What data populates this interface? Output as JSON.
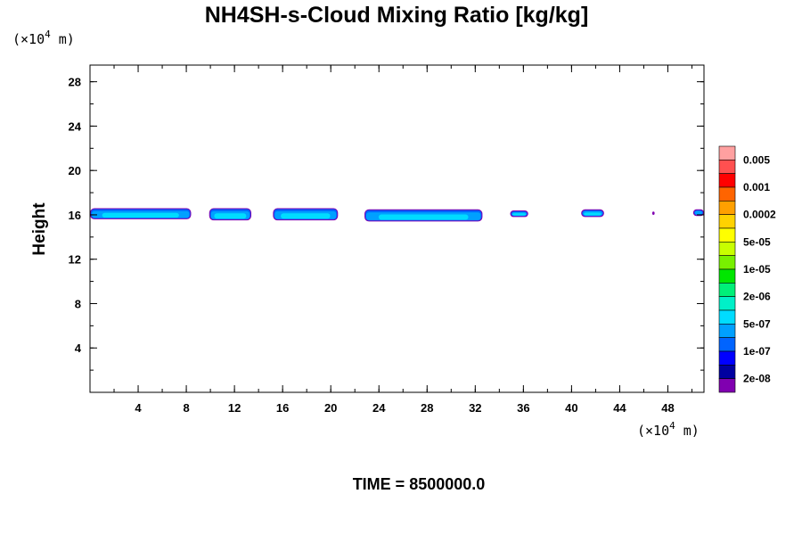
{
  "chart_data": {
    "type": "contour",
    "title": "NH4SH-s-Cloud Mixing Ratio [kg/kg]",
    "ylabel": "Height",
    "y_unit": "(×10",
    "x_unit": "(×10",
    "unit_exp": "4",
    "unit_tail": " m)",
    "time_label": "TIME = 8500000.0",
    "xlim": [
      0,
      51
    ],
    "ylim": [
      0,
      29.5
    ],
    "x_ticks": [
      4,
      8,
      12,
      16,
      20,
      24,
      28,
      32,
      36,
      40,
      44,
      48
    ],
    "y_ticks": [
      4,
      8,
      12,
      16,
      20,
      24,
      28
    ],
    "x_minor_step": 2,
    "y_minor_step": 2,
    "colorbar": {
      "levels": [
        "0.005",
        "0.001",
        "0.0002",
        "5e-05",
        "1e-05",
        "2e-06",
        "5e-07",
        "1e-07",
        "2e-08"
      ],
      "colors": [
        "#ffa0a0",
        "#ff5050",
        "#ff0000",
        "#ff6400",
        "#ffa000",
        "#ffd200",
        "#ffff00",
        "#c8ff00",
        "#78f000",
        "#00e600",
        "#00f078",
        "#00f0c8",
        "#00dcff",
        "#00a0ff",
        "#0064ff",
        "#0000ff",
        "#0000a0",
        "#8000b0"
      ]
    },
    "cloud_regions": [
      {
        "x": [
          0.0,
          8.4
        ],
        "y": [
          15.6,
          16.6
        ]
      },
      {
        "x": [
          9.9,
          13.4
        ],
        "y": [
          15.5,
          16.6
        ]
      },
      {
        "x": [
          15.2,
          20.6
        ],
        "y": [
          15.5,
          16.6
        ]
      },
      {
        "x": [
          22.8,
          32.6
        ],
        "y": [
          15.4,
          16.5
        ]
      },
      {
        "x": [
          34.9,
          36.4
        ],
        "y": [
          15.8,
          16.4
        ]
      },
      {
        "x": [
          40.8,
          42.7
        ],
        "y": [
          15.8,
          16.5
        ]
      },
      {
        "x": [
          46.7,
          46.9
        ],
        "y": [
          16.0,
          16.3
        ]
      },
      {
        "x": [
          50.1,
          51.0
        ],
        "y": [
          15.9,
          16.5
        ]
      }
    ]
  }
}
